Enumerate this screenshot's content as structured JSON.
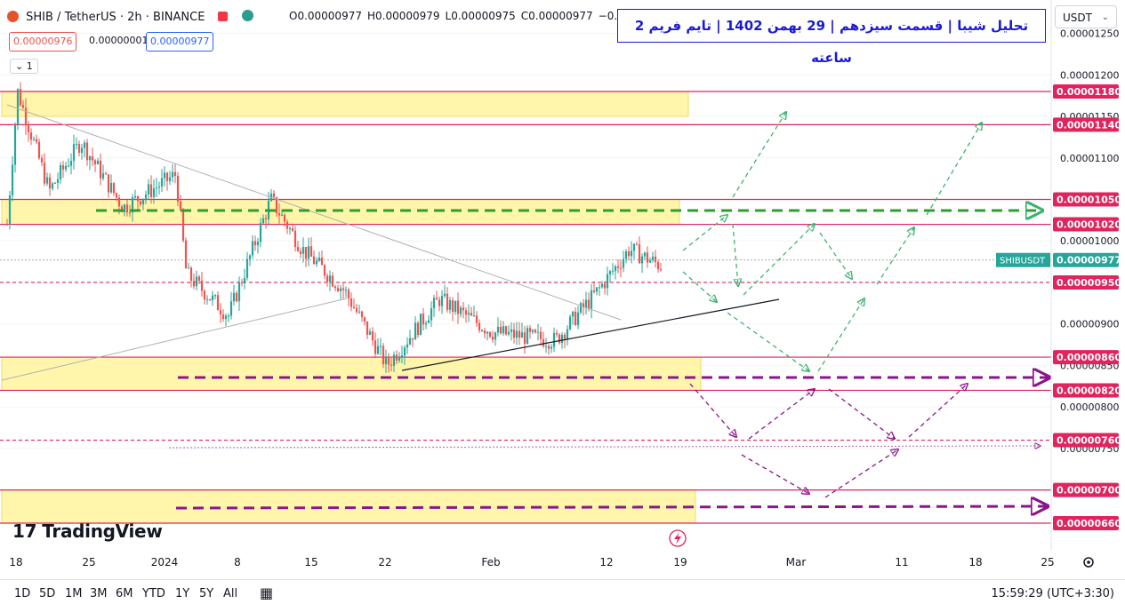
{
  "header": {
    "symbol": "SHIB / TetherUS · 2h · BINANCE",
    "ohlc": [
      "O0.00000977",
      "H0.00000979",
      "L0.00000975",
      "C0.00000977",
      "−0..."
    ],
    "bid": "0.00000976",
    "spread": "0.00000001",
    "ask": "0.00000977",
    "indicator_count": "1",
    "currency": "USDT",
    "title": "تحلیل شیبا | قسمت سیزدهم | 29 بهمن 1402 | تایم فریم 2 ساعته"
  },
  "footer": {
    "timeframes": [
      "1D",
      "5D",
      "1M",
      "3M",
      "6M",
      "YTD",
      "1Y",
      "5Y",
      "All"
    ],
    "clock": "15:59:29",
    "timezone": "(UTC+3:30)",
    "brand": "TradingView"
  },
  "colors": {
    "up": "#26a69a",
    "down": "#ef5350",
    "level": "#e0245e",
    "zone": "#fff59d",
    "green_arrow": "#2e9e2e",
    "purple_arrow": "#8b158b",
    "title_blue": "#1a1ad6"
  },
  "chart_data": {
    "type": "candlestick",
    "symbol_label": "SHIBUSDT",
    "last_price": 9.77e-06,
    "y_ticks": [
      "0.00001250",
      "0.00001200",
      "0.00001150",
      "0.00001100",
      "0.00001050",
      "0.00001000",
      "0.00000950",
      "0.00000900",
      "0.00000850",
      "0.00000800",
      "0.00000750"
    ],
    "x_ticks": [
      "18",
      "25",
      "2024",
      "8",
      "15",
      "22",
      "Feb",
      "12",
      "19",
      "Mar",
      "11",
      "18",
      "25"
    ],
    "levels": [
      {
        "price": 1.18e-05,
        "label": "0.00001180",
        "style": "solid"
      },
      {
        "price": 1.14e-05,
        "label": "0.00001140",
        "style": "solid"
      },
      {
        "price": 1.05e-05,
        "label": "0.00001050",
        "style": "solid"
      },
      {
        "price": 1.02e-05,
        "label": "0.00001020",
        "style": "solid"
      },
      {
        "price": 9.5e-06,
        "label": "0.00000950",
        "style": "dashed"
      },
      {
        "price": 8.6e-06,
        "label": "0.00000860",
        "style": "solid"
      },
      {
        "price": 8.2e-06,
        "label": "0.00000820",
        "style": "solid"
      },
      {
        "price": 7.6e-06,
        "label": "0.00000760",
        "style": "dashed"
      },
      {
        "price": 7e-06,
        "label": "0.00000700",
        "style": "solid"
      },
      {
        "price": 6.6e-06,
        "label": "0.00000660",
        "style": "solid"
      }
    ],
    "zones": [
      {
        "top": 1.18e-05,
        "bottom": 1.15e-05
      },
      {
        "top": 1.05e-05,
        "bottom": 1.02e-05
      },
      {
        "top": 8.6e-06,
        "bottom": 8.2e-06
      },
      {
        "top": 7e-06,
        "bottom": 6.6e-06
      }
    ],
    "price_path": [
      {
        "date": "2023-12-18",
        "close": 1.02e-05
      },
      {
        "date": "2023-12-19",
        "close": 1.18e-05
      },
      {
        "date": "2023-12-22",
        "close": 1.06e-05
      },
      {
        "date": "2023-12-25",
        "close": 1.12e-05
      },
      {
        "date": "2023-12-29",
        "close": 1.04e-05
      },
      {
        "date": "2024-01-03",
        "close": 1.08e-05
      },
      {
        "date": "2024-01-04",
        "close": 9.6e-06
      },
      {
        "date": "2024-01-08",
        "close": 9.1e-06
      },
      {
        "date": "2024-01-12",
        "close": 1.05e-05
      },
      {
        "date": "2024-01-15",
        "close": 9.9e-06
      },
      {
        "date": "2024-01-19",
        "close": 9.4e-06
      },
      {
        "date": "2024-01-23",
        "close": 8.5e-06
      },
      {
        "date": "2024-01-28",
        "close": 9.3e-06
      },
      {
        "date": "2024-02-02",
        "close": 8.9e-06
      },
      {
        "date": "2024-02-08",
        "close": 8.8e-06
      },
      {
        "date": "2024-02-12",
        "close": 9.4e-06
      },
      {
        "date": "2024-02-15",
        "close": 9.9e-06
      },
      {
        "date": "2024-02-18",
        "close": 9.7e-06
      }
    ]
  }
}
